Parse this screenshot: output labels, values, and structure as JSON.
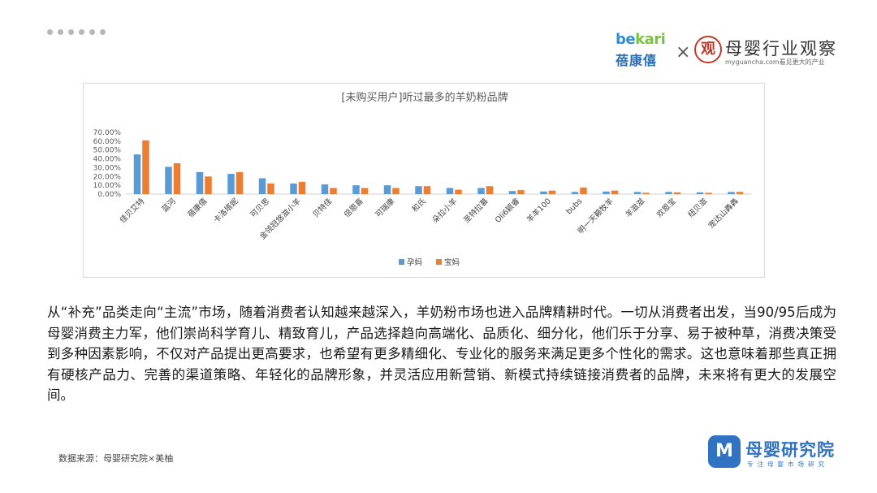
{
  "header": {
    "logo_bekari_latin_be": "be",
    "logo_bekari_latin_kari": "kari",
    "logo_bekari_cn": "蓓康僖",
    "times_symbol": "×",
    "logo_guancha_seal": "观",
    "logo_guancha_title": "母婴行业观察",
    "logo_guancha_sub": "myguancha.com看见更大的产业"
  },
  "chart_data": {
    "type": "bar",
    "title": "[未购买用户]听过最多的羊奶粉品牌",
    "categories": [
      "佳贝艾特",
      "蓝河",
      "蓓康僖",
      "卡洛塔妮",
      "可贝思",
      "金领冠悠滋小羊",
      "贝特佳",
      "倍恩喜",
      "可瑞康",
      "和氏",
      "朵拉小羊",
      "圣特拉慕",
      "Oli6颖睿",
      "羊羊100",
      "bubs",
      "明一天籁牧羊",
      "羊滋滋",
      "欢恩宝",
      "纽贝滋",
      "宠达山羴羴"
    ],
    "series": [
      {
        "name": "孕妈",
        "color": "#5b9bd5",
        "values": [
          45,
          31,
          25,
          23,
          18,
          12,
          11,
          10,
          10,
          9,
          7,
          7,
          3.5,
          3,
          2.5,
          3,
          2.5,
          2.5,
          2,
          2.5
        ]
      },
      {
        "name": "宝妈",
        "color": "#ed7d31",
        "values": [
          61,
          35,
          20,
          25,
          12,
          14,
          7,
          7,
          7,
          9,
          5,
          9,
          4.5,
          4,
          7.5,
          4,
          1.5,
          2,
          1.5,
          2.5
        ]
      }
    ],
    "ylim": [
      0,
      70
    ],
    "y_ticks": [
      "0.00%",
      "10.00%",
      "20.00%",
      "30.00%",
      "40.00%",
      "50.00%",
      "60.00%",
      "70.00%"
    ],
    "legend_position": "bottom-center",
    "grid": false
  },
  "body_text": "从“补充”品类走向“主流”市场，随着消费者认知越来越深入，羊奶粉市场也进入品牌精耕时代。一切从消费者出发，当90/95后成为母婴消费主力军，他们崇尚科学育儿、精致育儿，产品选择趋向高端化、品质化、细分化，他们乐于分享、易于被种草，消费决策受到多种因素影响，不仅对产品提出更高要求，也希望有更多精细化、专业化的服务来满足更多个性化的需求。这也意味着那些真正拥有硬核产品力、完善的渠道策略、年轻化的品牌形象，并灵活应用新营销、新模式持续链接消费者的品牌，未来将有更大的发展空间。",
  "footer": {
    "source": "数据来源：母婴研究院×美柚",
    "logo_research_icon": "M",
    "logo_research_title": "母婴研究院",
    "logo_research_sub": "专注母婴市场研究"
  }
}
